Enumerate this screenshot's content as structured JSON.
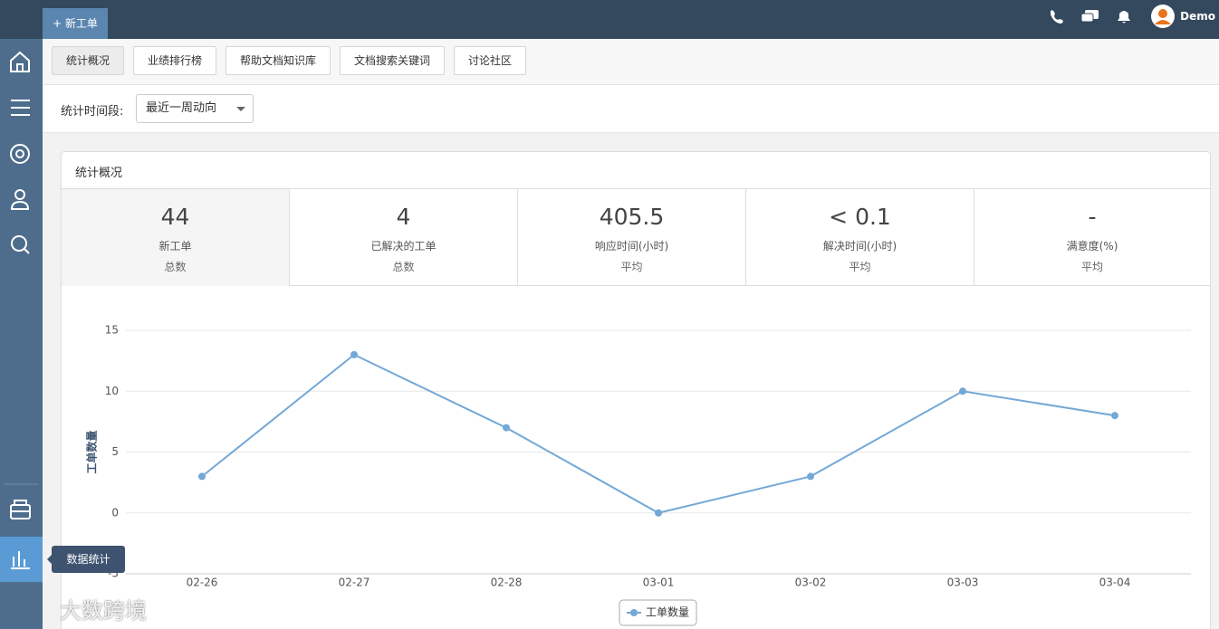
{
  "header": {
    "new_ticket": "+ 新工单",
    "user": "Demo"
  },
  "sidebar": {
    "tooltip": "数据统计"
  },
  "tabs": [
    "统计概况",
    "业绩排行榜",
    "帮助文档知识库",
    "文档搜索关键词",
    "讨论社区"
  ],
  "filter": {
    "label": "统计时间段:",
    "value": "最近一周动向"
  },
  "panel": {
    "title": "统计概况",
    "stats": [
      {
        "value": 44,
        "label": "新工单",
        "sub": "总数"
      },
      {
        "value": 4,
        "label": "已解决的工单",
        "sub": "总数"
      },
      {
        "value": 405.5,
        "label": "响应时间(小时)",
        "sub": "平均"
      },
      {
        "value": "< 0.1",
        "label": "解决时间(小时)",
        "sub": "平均"
      },
      {
        "value": "-",
        "label": "满意度(%)",
        "sub": "平均"
      }
    ]
  },
  "chart_data": {
    "type": "line",
    "y_label": "工单数量",
    "categories": [
      "02-26",
      "02-27",
      "02-28",
      "03-01",
      "03-02",
      "03-03",
      "03-04"
    ],
    "series": [
      {
        "name": "工单数量",
        "color": "#73a8d6",
        "values": [
          3,
          13,
          7,
          0,
          3,
          10,
          8
        ]
      }
    ],
    "ylim": [
      -5,
      15
    ],
    "yticks": [
      -5,
      0,
      5,
      10,
      15
    ],
    "grid": true,
    "legend": "bottom"
  },
  "watermark": "大数跨境"
}
